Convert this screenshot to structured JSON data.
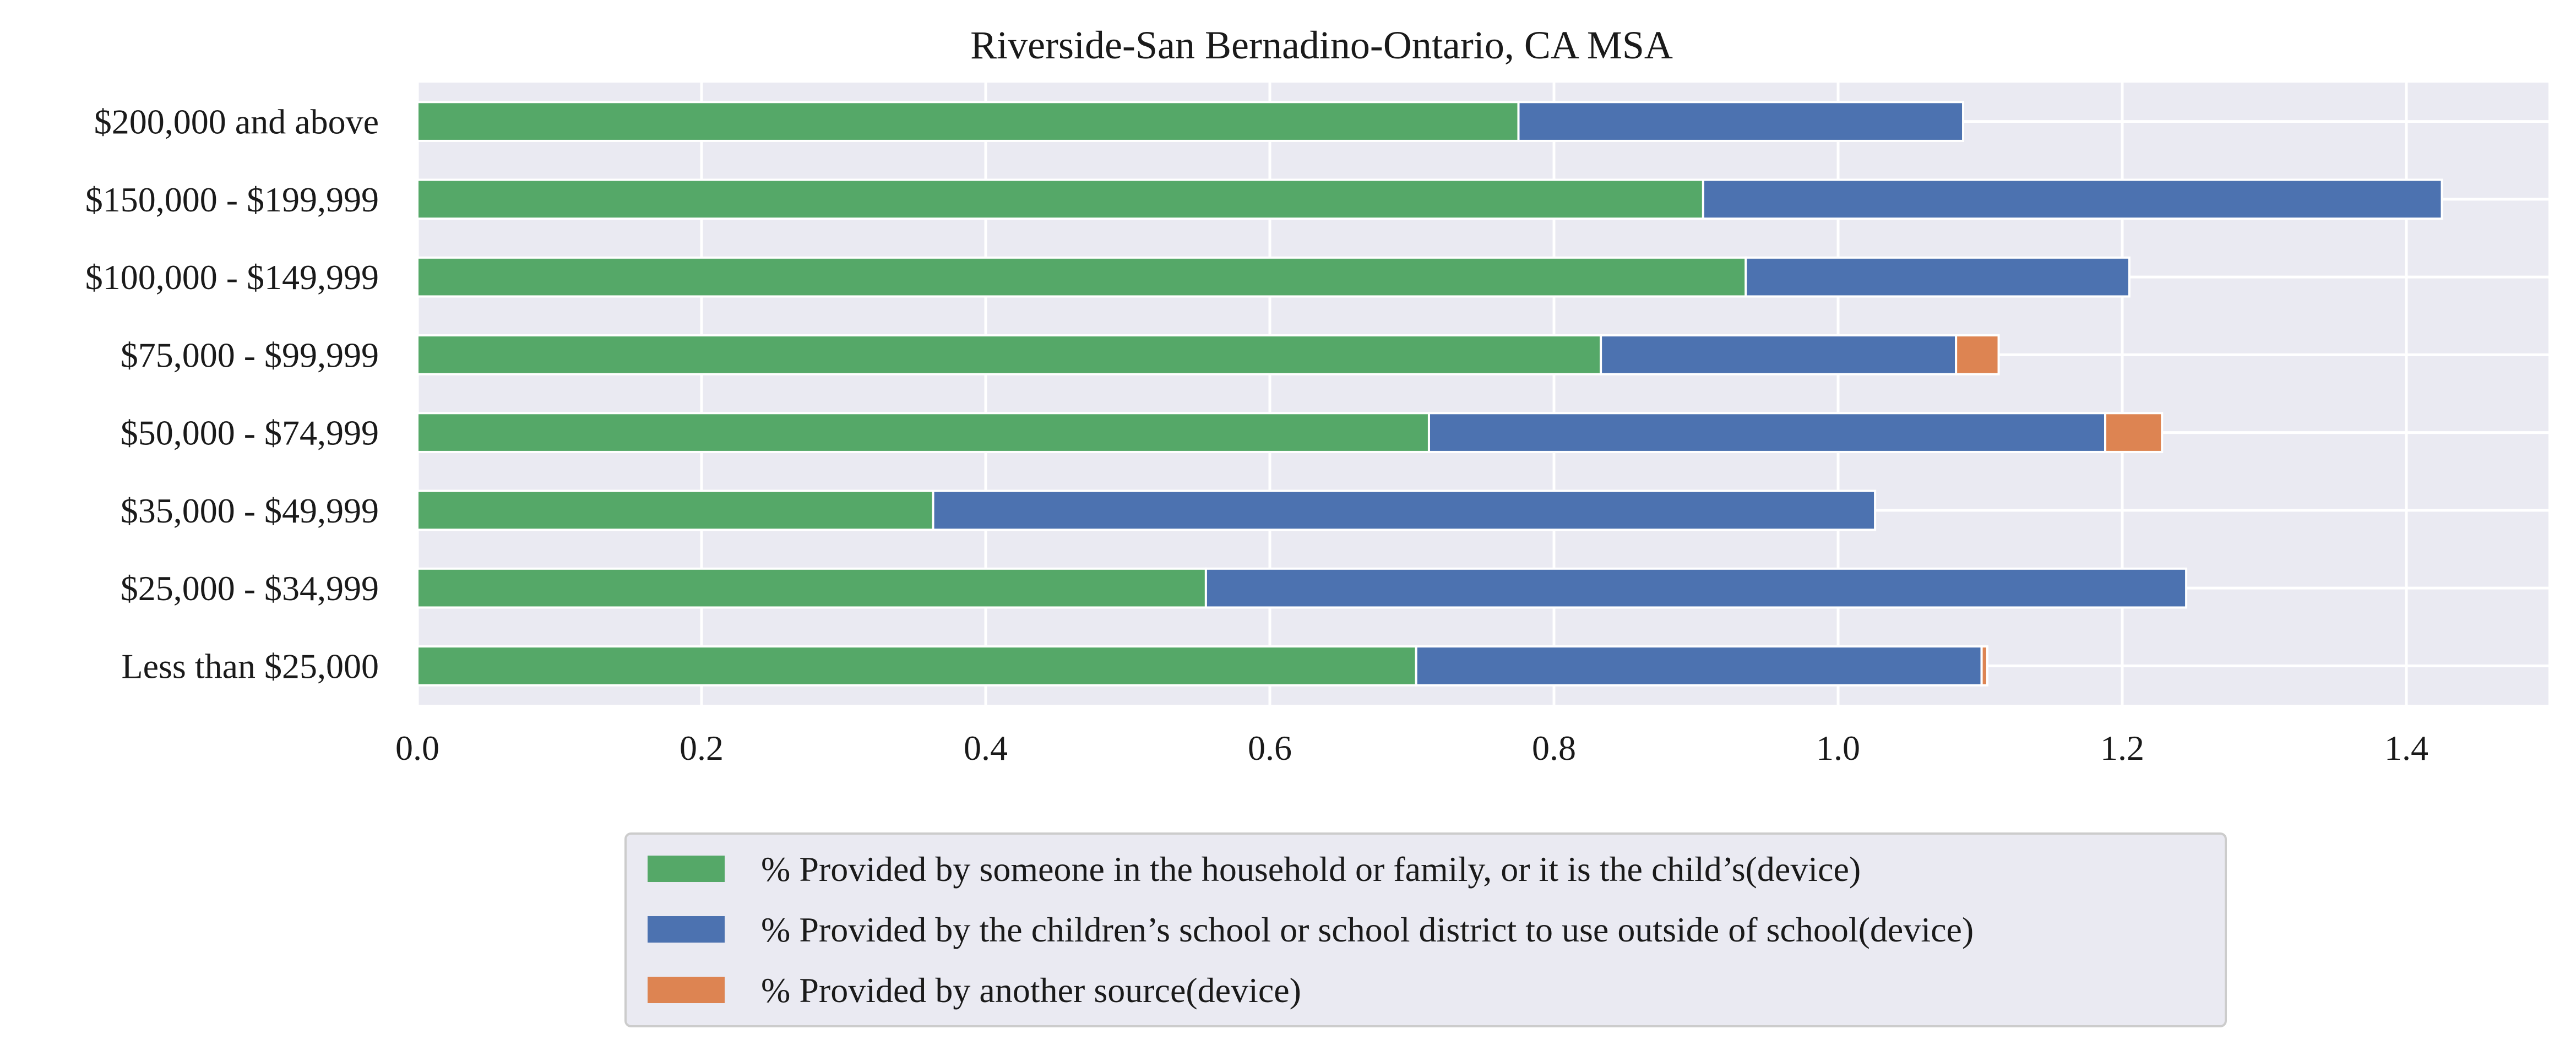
{
  "chart_data": {
    "type": "bar",
    "orientation": "horizontal",
    "stacked": true,
    "title": "Riverside-San Bernadino-Ontario, CA MSA",
    "xlabel": "",
    "ylabel": "",
    "xlim": [
      0,
      1.5
    ],
    "x_ticks": [
      "0.0",
      "0.2",
      "0.4",
      "0.6",
      "0.8",
      "1.0",
      "1.2",
      "1.4"
    ],
    "x_tick_values": [
      0,
      0.2,
      0.4,
      0.6,
      0.8,
      1.0,
      1.2,
      1.4
    ],
    "grid": true,
    "legend_position": "bottom-center",
    "categories": [
      "Less than $25,000",
      "$25,000 - $34,999",
      "$35,000 - $49,999",
      "$50,000 - $74,999",
      "$75,000 - $99,999",
      "$100,000 - $149,999",
      "$150,000 - $199,999",
      "$200,000 and above"
    ],
    "series": [
      {
        "name": "% Provided by someone in the household or family, or it is the child’s(device)",
        "color": "#55a868",
        "values": [
          0.703,
          0.555,
          0.363,
          0.712,
          0.833,
          0.935,
          0.905,
          0.775
        ]
      },
      {
        "name": "% Provided by the children’s school or school district to use outside of school(device)",
        "color": "#4c72b0",
        "values": [
          0.398,
          0.69,
          0.663,
          0.476,
          0.25,
          0.27,
          0.52,
          0.313
        ]
      },
      {
        "name": "% Provided by another source(device)",
        "color": "#dd8452",
        "values": [
          0.004,
          0.0,
          0.0,
          0.04,
          0.03,
          0.0,
          0.0,
          0.0
        ]
      }
    ]
  },
  "colors": {
    "plot_background": "#eaeaf2",
    "grid": "#ffffff",
    "legend_border": "#cccccc"
  }
}
